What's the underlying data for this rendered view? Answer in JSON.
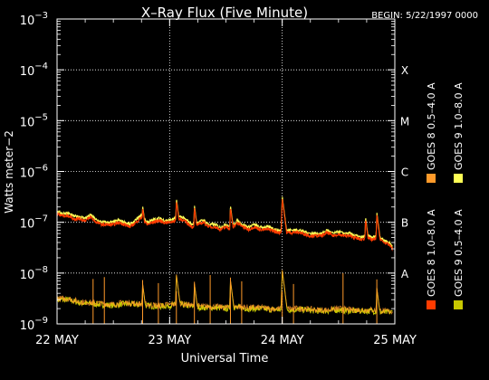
{
  "header": {
    "begin_label": "BEGIN: 5/22/1997 0000"
  },
  "chart_data": {
    "type": "line",
    "title": "X–Ray Flux (Five Minute)",
    "xlabel": "Universal Time",
    "ylabel": "Watts meter−2",
    "yscale": "log",
    "ylim": [
      1e-09,
      0.001
    ],
    "xlim_days": [
      0,
      3
    ],
    "y_ticks": [
      {
        "base": "10",
        "exp": "−3",
        "value": 0.001
      },
      {
        "base": "10",
        "exp": "−4",
        "value": 0.0001
      },
      {
        "base": "10",
        "exp": "−5",
        "value": 1e-05
      },
      {
        "base": "10",
        "exp": "−6",
        "value": 1e-06
      },
      {
        "base": "10",
        "exp": "−7",
        "value": 1e-07
      },
      {
        "base": "10",
        "exp": "−8",
        "value": 1e-08
      },
      {
        "base": "10",
        "exp": "−9",
        "value": 1e-09
      }
    ],
    "x_ticks": [
      {
        "label": "22 MAY",
        "day": 0
      },
      {
        "label": "23 MAY",
        "day": 1
      },
      {
        "label": "24 MAY",
        "day": 2
      },
      {
        "label": "25 MAY",
        "day": 3
      }
    ],
    "flare_classes": [
      {
        "label": "X",
        "value": 0.0001
      },
      {
        "label": "M",
        "value": 1e-05
      },
      {
        "label": "C",
        "value": 1e-06
      },
      {
        "label": "B",
        "value": 1e-07
      },
      {
        "label": "A",
        "value": 1e-08
      }
    ],
    "grid": {
      "horizontal_dotted_from_1e-8": true,
      "vertical_dotted_at_day_boundaries": true
    },
    "legend_position": "right, vertical",
    "series": [
      {
        "name": "GOES 8 1.0–8.0 A",
        "color": "#ff3b00"
      },
      {
        "name": "GOES 8 0.5–4.0 A",
        "color": "#ff9a2a"
      },
      {
        "name": "GOES 9 1.0–8.0 A",
        "color": "#ffff55"
      },
      {
        "name": "GOES 9 0.5–4.0 A",
        "color": "#c8c800"
      }
    ],
    "long_channel": {
      "x": [
        0,
        0.05,
        0.1,
        0.15,
        0.2,
        0.25,
        0.3,
        0.35,
        0.4,
        0.45,
        0.5,
        0.55,
        0.6,
        0.65,
        0.7,
        0.75,
        0.8,
        0.85,
        0.9,
        0.95,
        1.0,
        1.05,
        1.1,
        1.15,
        1.2,
        1.25,
        1.3,
        1.35,
        1.4,
        1.45,
        1.5,
        1.55,
        1.6,
        1.65,
        1.7,
        1.75,
        1.8,
        1.85,
        1.9,
        1.95,
        2.0,
        2.05,
        2.1,
        2.15,
        2.2,
        2.25,
        2.3,
        2.35,
        2.4,
        2.45,
        2.5,
        2.55,
        2.6,
        2.65,
        2.7,
        2.75,
        2.8,
        2.85,
        2.9,
        2.95,
        3.0
      ],
      "y": [
        1.6e-07,
        1.5e-07,
        1.5e-07,
        1.3e-07,
        1.3e-07,
        1.2e-07,
        1.4e-07,
        1.1e-07,
        1e-07,
        1e-07,
        1e-07,
        1.1e-07,
        1e-07,
        9e-08,
        1.1e-07,
        1.4e-07,
        1e-07,
        1.1e-07,
        1.2e-07,
        1.1e-07,
        1.1e-07,
        1.2e-07,
        1.3e-07,
        1.1e-07,
        9e-08,
        1e-07,
        1.1e-07,
        9e-08,
        9e-08,
        8e-08,
        9e-08,
        8e-08,
        1.1e-07,
        9e-08,
        8e-08,
        9e-08,
        8e-08,
        8e-08,
        8e-08,
        7e-08,
        7e-08,
        7e-08,
        7e-08,
        7e-08,
        6.5e-08,
        6e-08,
        6e-08,
        6e-08,
        7e-08,
        6e-08,
        6.5e-08,
        6e-08,
        6e-08,
        5.5e-08,
        5e-08,
        5.5e-08,
        5e-08,
        5.5e-08,
        4.5e-08,
        4e-08,
        3e-08
      ],
      "peaks": [
        {
          "day": 0.76,
          "value": 2.2e-07
        },
        {
          "day": 1.06,
          "value": 3e-07
        },
        {
          "day": 1.22,
          "value": 2.2e-07
        },
        {
          "day": 1.54,
          "value": 2.2e-07
        },
        {
          "day": 2.0,
          "value": 3.3e-07
        },
        {
          "day": 2.74,
          "value": 1.3e-07
        },
        {
          "day": 2.84,
          "value": 1.6e-07
        }
      ]
    },
    "short_channel": {
      "x": [
        0,
        0.1,
        0.2,
        0.3,
        0.4,
        0.5,
        0.6,
        0.7,
        0.8,
        0.9,
        1.0,
        1.1,
        1.2,
        1.3,
        1.4,
        1.5,
        1.6,
        1.7,
        1.8,
        1.9,
        2.0,
        2.1,
        2.2,
        2.3,
        2.4,
        2.5,
        2.6,
        2.7,
        2.8,
        2.9,
        3.0
      ],
      "y": [
        3e-09,
        3e-09,
        2.6e-09,
        2.5e-09,
        2.4e-09,
        2.3e-09,
        2.5e-09,
        2.4e-09,
        2.3e-09,
        2.2e-09,
        2.3e-09,
        2.4e-09,
        2.2e-09,
        2.1e-09,
        2.1e-09,
        2e-09,
        2.1e-09,
        2e-09,
        2e-09,
        1.9e-09,
        1.9e-09,
        1.9e-09,
        1.9e-09,
        1.8e-09,
        1.8e-09,
        1.9e-09,
        1.8e-09,
        1.8e-09,
        1.8e-09,
        1.7e-09,
        1.7e-09
      ],
      "peaks": [
        {
          "day": 0.76,
          "value": 6e-09
        },
        {
          "day": 1.06,
          "value": 9e-09
        },
        {
          "day": 1.22,
          "value": 6e-09
        },
        {
          "day": 1.54,
          "value": 7e-09
        },
        {
          "day": 2.0,
          "value": 1.1e-08
        },
        {
          "day": 2.84,
          "value": 5e-09
        }
      ]
    }
  }
}
